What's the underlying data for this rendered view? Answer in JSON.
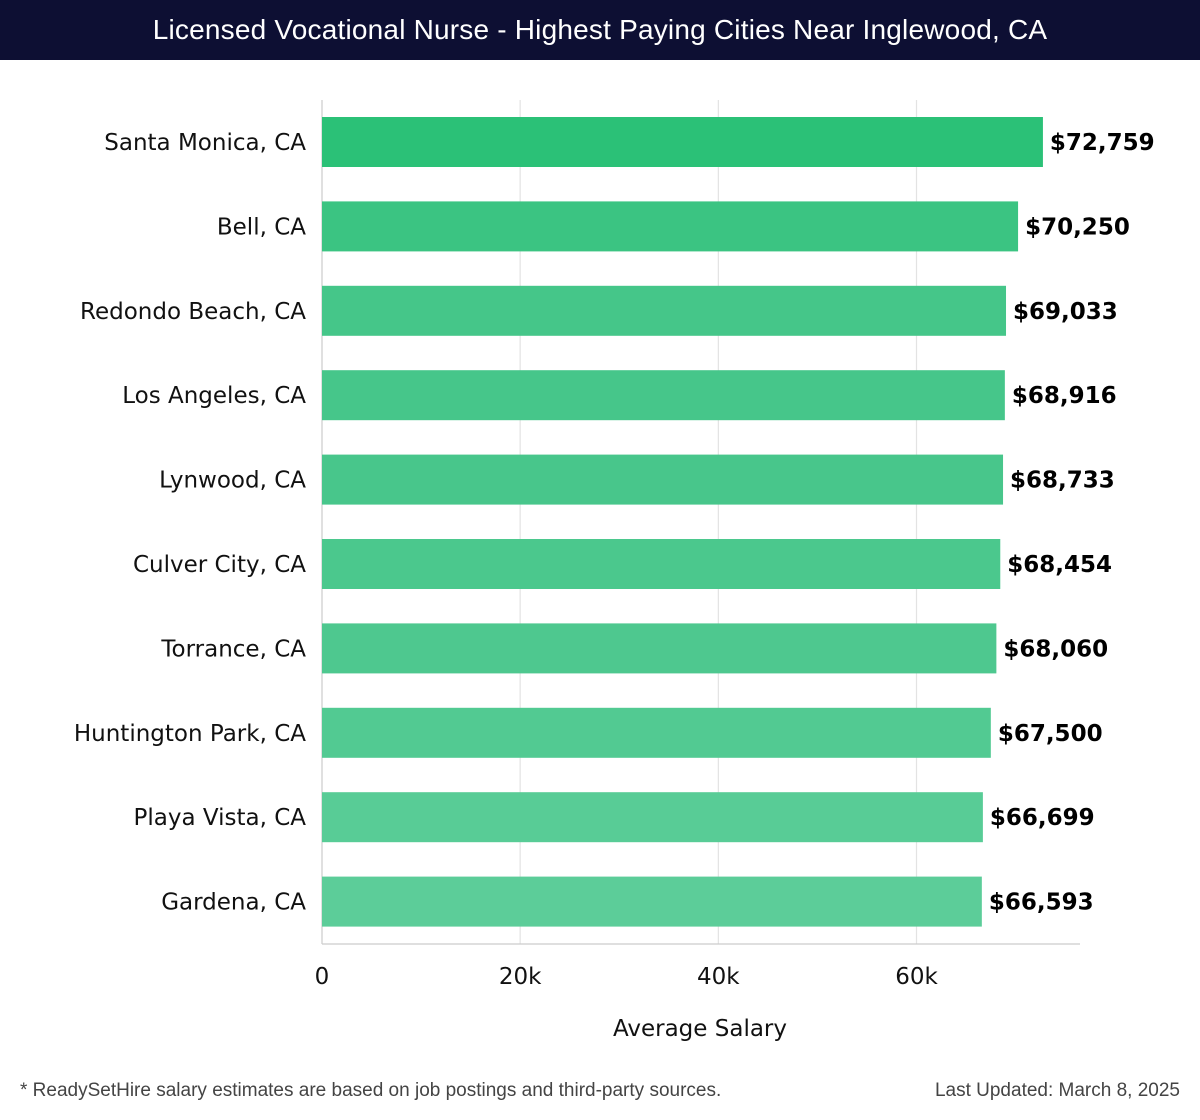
{
  "header": {
    "title": "Licensed Vocational Nurse - Highest Paying Cities Near Inglewood, CA"
  },
  "chart_data": {
    "type": "bar",
    "orientation": "horizontal",
    "title": "Licensed Vocational Nurse - Highest Paying Cities Near Inglewood, CA",
    "xlabel": "Average Salary",
    "ylabel": "",
    "xlim": [
      0,
      76500
    ],
    "xticks": [
      0,
      20000,
      40000,
      60000
    ],
    "xtick_labels": [
      "0",
      "20k",
      "40k",
      "60k"
    ],
    "grid": true,
    "categories": [
      "Santa Monica, CA",
      "Bell, CA",
      "Redondo Beach, CA",
      "Los Angeles, CA",
      "Lynwood, CA",
      "Culver City, CA",
      "Torrance, CA",
      "Huntington Park, CA",
      "Playa Vista, CA",
      "Gardena, CA"
    ],
    "values": [
      72759,
      70250,
      69033,
      68916,
      68733,
      68454,
      68060,
      67500,
      66699,
      66593
    ],
    "value_labels": [
      "$72,759",
      "$70,250",
      "$69,033",
      "$68,916",
      "$68,733",
      "$68,454",
      "$68,060",
      "$67,500",
      "$66,699",
      "$66,593"
    ],
    "bar_colors": [
      "#2bc177",
      "#3bc482",
      "#45c689",
      "#46c68a",
      "#48c68b",
      "#4bc88d",
      "#4ec88f",
      "#52ca92",
      "#58cc96",
      "#5ccd99"
    ]
  },
  "footer": {
    "note": "* ReadySetHire salary estimates are based on job postings and third-party sources.",
    "updated": "Last Updated: March 8, 2025"
  },
  "colors": {
    "header_bg": "#0d0f33",
    "gridline": "#e3e3e3",
    "axis": "#cccccc",
    "text": "#111111"
  }
}
